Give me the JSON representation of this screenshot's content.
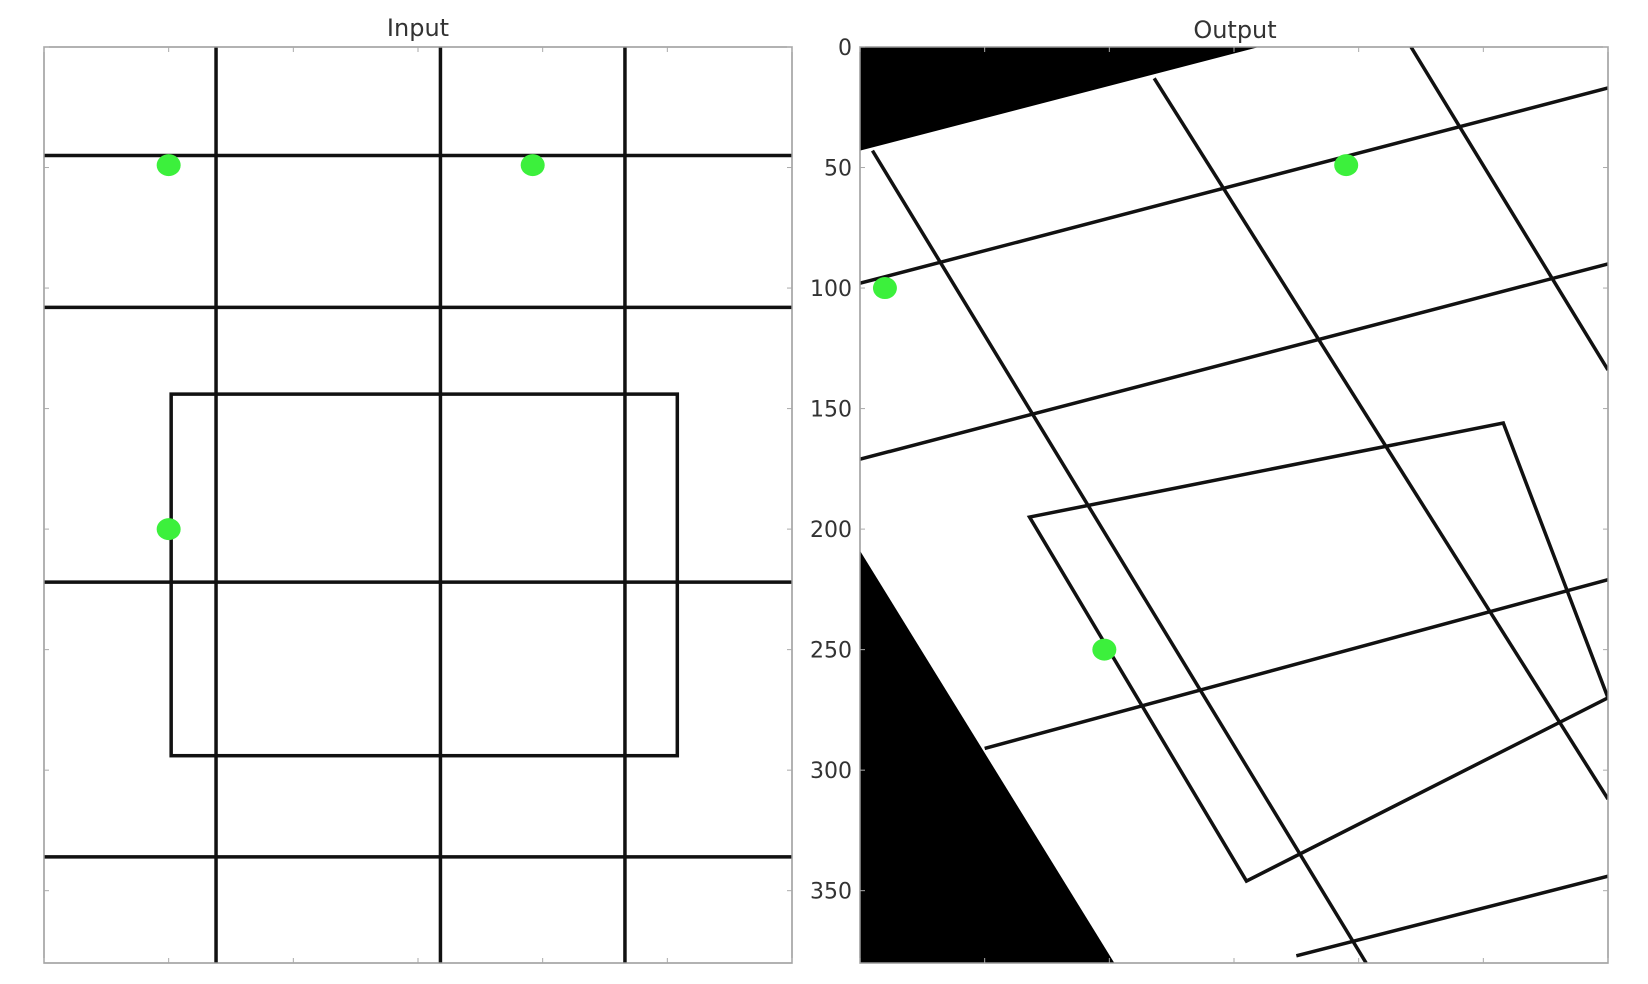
{
  "colors": {
    "point": "#3cf03c",
    "line": "#111111",
    "fill_black": "#000000",
    "frame": "#999999",
    "background": "#ffffff"
  },
  "chart_data": [
    {
      "type": "scatter",
      "title": "Input",
      "xlabel": "",
      "ylabel": "",
      "xlim": [
        0,
        300
      ],
      "ylim": [
        380,
        0
      ],
      "x_ticks": [
        0,
        50,
        100,
        150,
        200,
        250,
        300
      ],
      "y_ticks": [
        0,
        50,
        100,
        150,
        200,
        250,
        300,
        350
      ],
      "x_tick_labels_visible": false,
      "y_tick_labels_visible": false,
      "grid": false,
      "image": {
        "horizontal_lines_y": [
          45,
          108,
          222,
          336
        ],
        "vertical_lines_x": [
          69,
          159,
          233
        ],
        "rectangle": {
          "x0": 51,
          "y0": 144,
          "x1": 254,
          "y1": 294
        }
      },
      "points": [
        {
          "x": 50,
          "y": 49
        },
        {
          "x": 196,
          "y": 49
        },
        {
          "x": 50,
          "y": 200
        }
      ]
    },
    {
      "type": "scatter",
      "title": "Output",
      "xlabel": "",
      "ylabel": "",
      "xlim": [
        0,
        300
      ],
      "ylim": [
        380,
        0
      ],
      "x_ticks": [
        0,
        50,
        100,
        150,
        200,
        250,
        300
      ],
      "y_ticks": [
        0,
        50,
        100,
        150,
        200,
        250,
        300,
        350
      ],
      "y_tick_labels": [
        "0",
        "50",
        "100",
        "150",
        "200",
        "250",
        "300",
        "350"
      ],
      "x_tick_labels_visible": false,
      "grid": false,
      "image": {
        "black_regions": [
          [
            [
              0,
              0
            ],
            [
              160,
              0
            ],
            [
              0,
              43
            ]
          ],
          [
            [
              0,
              209
            ],
            [
              0,
              380
            ],
            [
              102,
              380
            ]
          ]
        ],
        "lines": [
          [
            [
              0,
              98
            ],
            [
              300,
              17
            ]
          ],
          [
            [
              0,
              171
            ],
            [
              300,
              90
            ]
          ],
          [
            [
              50,
              291
            ],
            [
              300,
              221
            ]
          ],
          [
            [
              175,
              377
            ],
            [
              300,
              344
            ]
          ],
          [
            [
              5,
              43
            ],
            [
              203,
              380
            ]
          ],
          [
            [
              118,
              13
            ],
            [
              300,
              312
            ]
          ],
          [
            [
              221,
              0
            ],
            [
              300,
              134
            ]
          ]
        ],
        "rectangle": [
          [
            68,
            195
          ],
          [
            258,
            156
          ],
          [
            300,
            270
          ],
          [
            155,
            346
          ]
        ]
      },
      "points": [
        {
          "x": 195,
          "y": 49
        },
        {
          "x": 10,
          "y": 100
        },
        {
          "x": 98,
          "y": 250
        }
      ]
    }
  ]
}
